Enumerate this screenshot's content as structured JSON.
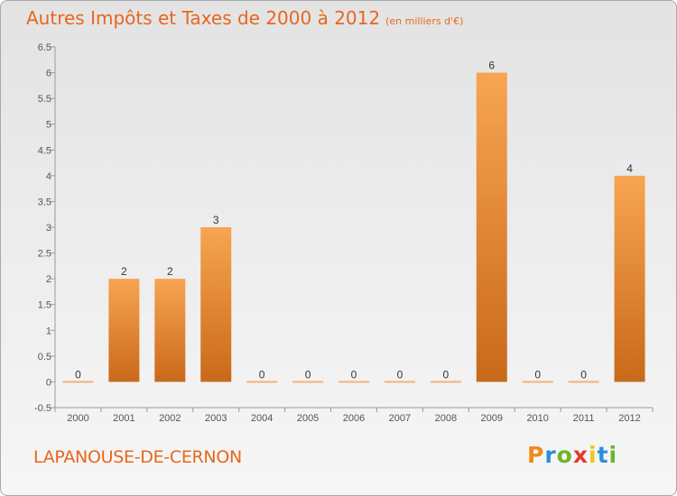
{
  "chart_data": {
    "type": "bar",
    "title": "Autres Impôts et Taxes de 2000 à 2012",
    "subtitle": "(en milliers d'€)",
    "categories": [
      "2000",
      "2001",
      "2002",
      "2003",
      "2004",
      "2005",
      "2006",
      "2007",
      "2008",
      "2009",
      "2010",
      "2011",
      "2012"
    ],
    "values": [
      0,
      2,
      2,
      3,
      0,
      0,
      0,
      0,
      0,
      6,
      0,
      0,
      4
    ],
    "data_labels": [
      "0",
      "2",
      "2",
      "3",
      "0",
      "0",
      "0",
      "0",
      "0",
      "6",
      "0",
      "0",
      "4"
    ],
    "ylim": [
      -0.5,
      6.5
    ],
    "y_ticks": [
      -0.5,
      0,
      0.5,
      1,
      1.5,
      2,
      2.5,
      3,
      3.5,
      4,
      4.5,
      5,
      5.5,
      6,
      6.5
    ],
    "y_tick_labels": [
      "-0.5",
      "0",
      "0.5",
      "1",
      "1.5",
      "2",
      "2.5",
      "3",
      "3.5",
      "4",
      "4.5",
      "5",
      "5.5",
      "6",
      "6.5"
    ],
    "xlabel": "",
    "ylabel": "",
    "grid": false,
    "legend": "none",
    "bar_color": "#f0953a",
    "zero_bar_color": "#f5b27a"
  },
  "footer": {
    "location": "LAPANOUSE-DE-CERNON",
    "brand_letters": [
      {
        "ch": "P",
        "color": "#f08a1c"
      },
      {
        "ch": "r",
        "color": "#2d8fd5"
      },
      {
        "ch": "o",
        "color": "#6bb52b"
      },
      {
        "ch": "x",
        "color": "#e23b2e"
      },
      {
        "ch": "i",
        "color": "#f0c419"
      },
      {
        "ch": "t",
        "color": "#2d8fd5"
      },
      {
        "ch": "i",
        "color": "#6bb52b"
      }
    ]
  },
  "colors": {
    "accent": "#e8661e"
  }
}
